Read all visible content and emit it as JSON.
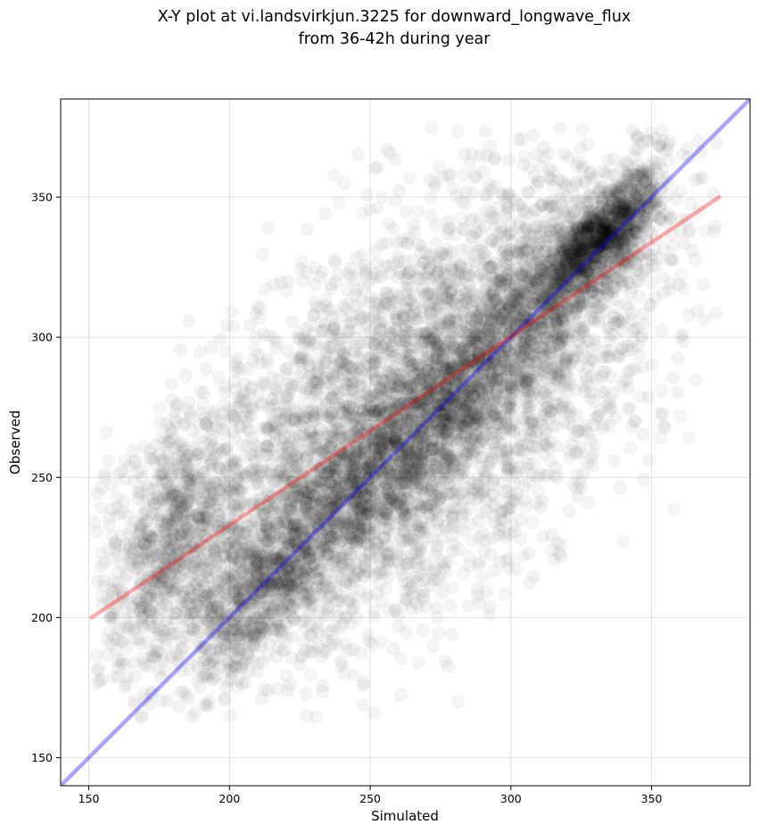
{
  "title_lines": [
    "X-Y plot at vi.landsvirkjun.3225 for downward_longwave_flux",
    "from 36-42h during year"
  ],
  "colors": {
    "points": "#000000",
    "identity_line": "#0000ff",
    "fit_line": "#ff0000",
    "grid": "#b0b0b0"
  },
  "chart_data": {
    "type": "scatter",
    "title": "X-Y plot at vi.landsvirkjun.3225 for downward_longwave_flux\nfrom 36-42h during year",
    "xlabel": "Simulated",
    "ylabel": "Observed",
    "xlim": [
      140,
      385
    ],
    "ylim": [
      140,
      385
    ],
    "xticks": [
      150,
      200,
      250,
      300,
      350
    ],
    "yticks": [
      150,
      200,
      250,
      300,
      350
    ],
    "grid": true,
    "point_style": "large semi-transparent black circles (alpha ~0.05)",
    "point_count_approx": 9000,
    "clusters": [
      {
        "name": "main diagonal band",
        "x_range": [
          195,
          350
        ],
        "center_line": "y = x",
        "spread": 12,
        "weight": 0.32
      },
      {
        "name": "broad cloud",
        "x_center": 265,
        "y_center": 272,
        "x_sd": 42,
        "y_sd": 42,
        "corr": 0.62,
        "weight": 0.5
      },
      {
        "name": "lower-left group",
        "x_center": 180,
        "y_center": 225,
        "x_sd": 14,
        "y_sd": 24,
        "corr": 0.3,
        "weight": 0.1
      },
      {
        "name": "dense upper-right core",
        "x_center": 330,
        "y_center": 335,
        "x_sd": 10,
        "y_sd": 10,
        "corr": 0.8,
        "weight": 0.08
      }
    ],
    "series": [
      {
        "name": "",
        "kind": "line",
        "color": "#0000ff",
        "x": [
          140,
          385
        ],
        "y": [
          140,
          385
        ]
      },
      {
        "name": "",
        "kind": "line",
        "color": "#ff0000",
        "x": [
          151,
          374
        ],
        "y": [
          200,
          350
        ]
      }
    ]
  }
}
